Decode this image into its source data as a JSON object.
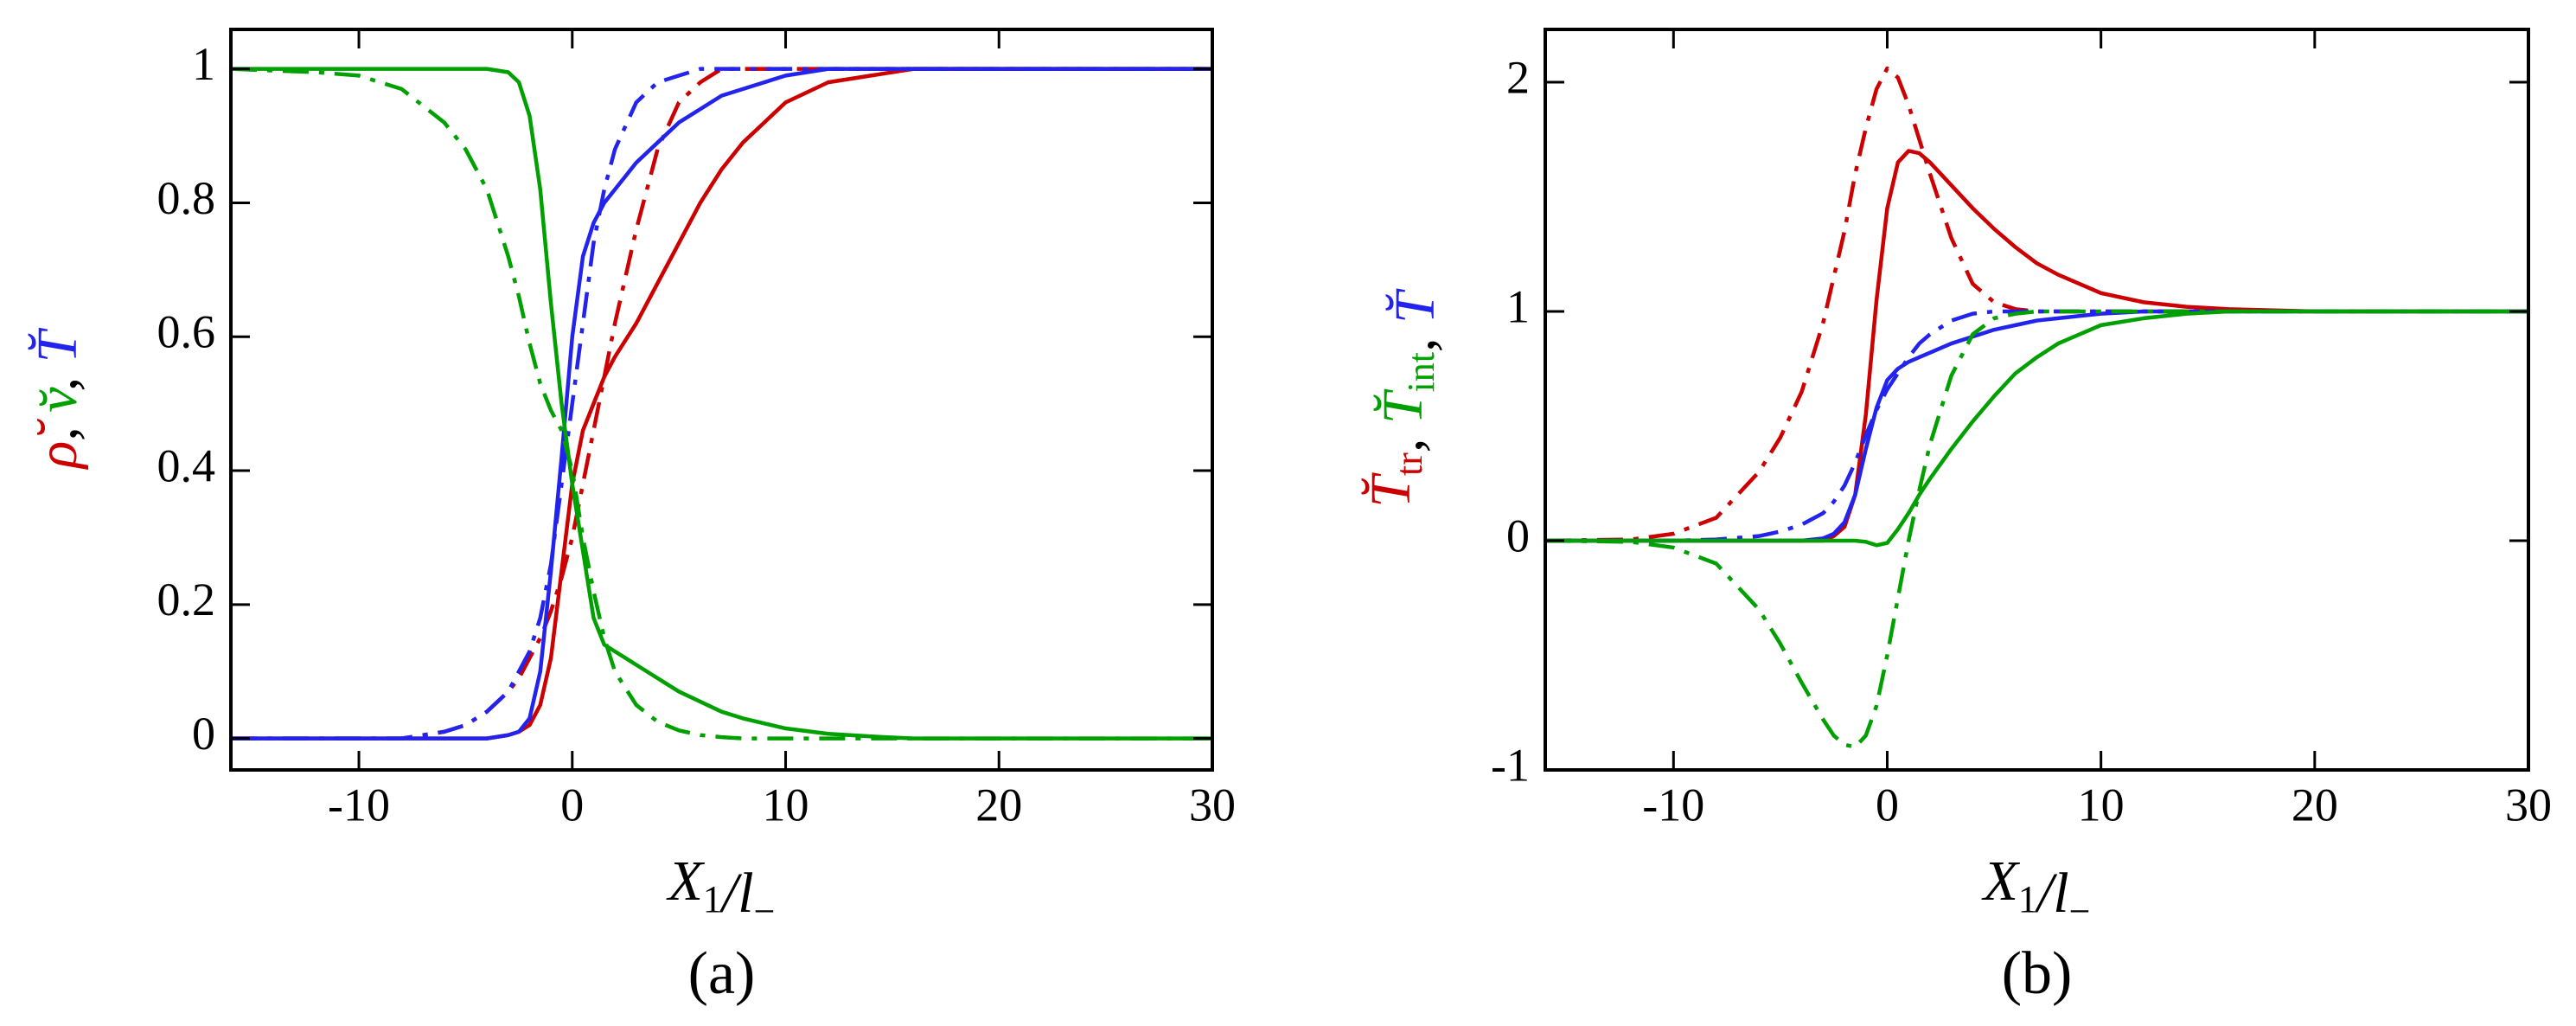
{
  "chart_data": [
    {
      "type": "line",
      "panel_label": "(a)",
      "xlabel": [
        {
          "text": "X",
          "sub": "1"
        },
        {
          "text": "/l",
          "sub": "−"
        }
      ],
      "ylabel": [
        {
          "text": "ρ̆",
          "color": "#cc0000"
        },
        {
          "text": ", ",
          "color": "#000000"
        },
        {
          "text": "v̆",
          "color": "#00a000"
        },
        {
          "text": ", ",
          "color": "#000000"
        },
        {
          "text": "T̆",
          "color": "#2323ee"
        }
      ],
      "xlim": [
        -16,
        30
      ],
      "ylim": [
        -0.047,
        1.059
      ],
      "xticks": [
        -10,
        0,
        10,
        20,
        30
      ],
      "yticks": [
        0,
        0.2,
        0.4,
        0.6,
        0.8,
        1
      ],
      "x": [
        -16,
        -12,
        -10,
        -8,
        -6,
        -5,
        -4,
        -3,
        -2.5,
        -2,
        -1.5,
        -1,
        -0.5,
        0,
        0.5,
        1,
        1.5,
        2,
        3,
        4,
        5,
        6,
        7,
        8,
        10,
        12,
        14,
        16,
        20,
        25,
        30
      ],
      "series": [
        {
          "color": "#cc0000",
          "dash": "solid",
          "values": [
            0,
            0,
            0,
            0,
            0,
            0,
            0,
            0.005,
            0.01,
            0.02,
            0.05,
            0.12,
            0.25,
            0.38,
            0.46,
            0.5,
            0.54,
            0.57,
            0.62,
            0.68,
            0.74,
            0.8,
            0.85,
            0.89,
            0.95,
            0.98,
            0.99,
            1,
            1,
            1,
            1
          ]
        },
        {
          "color": "#cc0000",
          "dash": "dashdot",
          "values": [
            0,
            0,
            0,
            0,
            0.01,
            0.02,
            0.04,
            0.07,
            0.09,
            0.12,
            0.15,
            0.19,
            0.24,
            0.3,
            0.38,
            0.46,
            0.54,
            0.62,
            0.76,
            0.88,
            0.95,
            0.98,
            1,
            1,
            1,
            1,
            1,
            1,
            1,
            1,
            1
          ]
        },
        {
          "color": "#2323ee",
          "dash": "solid",
          "values": [
            0,
            0,
            0,
            0,
            0,
            0,
            0,
            0.005,
            0.01,
            0.03,
            0.1,
            0.25,
            0.42,
            0.6,
            0.72,
            0.77,
            0.8,
            0.82,
            0.86,
            0.89,
            0.92,
            0.94,
            0.96,
            0.97,
            0.99,
            1,
            1,
            1,
            1,
            1,
            1
          ]
        },
        {
          "color": "#2323ee",
          "dash": "dashdot",
          "values": [
            0,
            0,
            0,
            0,
            0.01,
            0.02,
            0.04,
            0.07,
            0.1,
            0.13,
            0.18,
            0.26,
            0.38,
            0.5,
            0.62,
            0.74,
            0.82,
            0.88,
            0.95,
            0.98,
            0.99,
            1,
            1,
            1,
            1,
            1,
            1,
            1,
            1,
            1,
            1
          ]
        },
        {
          "color": "#00a000",
          "dash": "solid",
          "values": [
            1,
            1,
            1,
            1,
            1,
            1,
            1,
            0.995,
            0.98,
            0.93,
            0.82,
            0.65,
            0.5,
            0.38,
            0.28,
            0.18,
            0.14,
            0.13,
            0.11,
            0.09,
            0.07,
            0.055,
            0.04,
            0.03,
            0.015,
            0.007,
            0.003,
            0,
            0,
            0,
            0
          ]
        },
        {
          "color": "#00a000",
          "dash": "dashdot",
          "values": [
            1,
            0.995,
            0.99,
            0.97,
            0.92,
            0.88,
            0.82,
            0.72,
            0.66,
            0.59,
            0.53,
            0.49,
            0.46,
            0.4,
            0.3,
            0.22,
            0.15,
            0.1,
            0.05,
            0.025,
            0.012,
            0.005,
            0.002,
            0,
            0,
            0,
            0,
            0,
            0,
            0,
            0
          ]
        }
      ]
    },
    {
      "type": "line",
      "panel_label": "(b)",
      "xlabel": [
        {
          "text": "X",
          "sub": "1"
        },
        {
          "text": "/l",
          "sub": "−"
        }
      ],
      "ylabel": [
        {
          "text": "T̆",
          "sub": "tr",
          "color": "#cc0000"
        },
        {
          "text": ", ",
          "color": "#000000"
        },
        {
          "text": "T̆",
          "sub": "int",
          "color": "#00a000"
        },
        {
          "text": ", ",
          "color": "#000000"
        },
        {
          "text": "T̆",
          "color": "#2323ee"
        }
      ],
      "xlim": [
        -16,
        30
      ],
      "ylim": [
        -1,
        2.23
      ],
      "xticks": [
        -10,
        0,
        10,
        20,
        30
      ],
      "yticks": [
        -1,
        0,
        1,
        2
      ],
      "x": [
        -16,
        -12,
        -10,
        -8,
        -6,
        -5,
        -4,
        -3,
        -2.5,
        -2,
        -1.5,
        -1,
        -0.5,
        0,
        0.5,
        1,
        1.5,
        2,
        3,
        4,
        5,
        6,
        7,
        8,
        10,
        12,
        14,
        16,
        20,
        25,
        30
      ],
      "series": [
        {
          "color": "#cc0000",
          "dash": "solid",
          "values": [
            0,
            0,
            0,
            0,
            0,
            0,
            0,
            0,
            0.02,
            0.06,
            0.2,
            0.55,
            1.05,
            1.45,
            1.65,
            1.7,
            1.69,
            1.65,
            1.55,
            1.45,
            1.36,
            1.28,
            1.21,
            1.16,
            1.08,
            1.04,
            1.02,
            1.01,
            1,
            1,
            1
          ]
        },
        {
          "color": "#cc0000",
          "dash": "dashdot",
          "values": [
            0,
            0.005,
            0.03,
            0.1,
            0.3,
            0.45,
            0.65,
            0.95,
            1.15,
            1.35,
            1.6,
            1.8,
            1.97,
            2.06,
            2.02,
            1.9,
            1.75,
            1.6,
            1.32,
            1.12,
            1.04,
            1.01,
            1,
            1,
            1,
            1,
            1,
            1,
            1,
            1,
            1
          ]
        },
        {
          "color": "#2323ee",
          "dash": "solid",
          "values": [
            0,
            0,
            0,
            0,
            0,
            0,
            0,
            0.01,
            0.03,
            0.08,
            0.2,
            0.4,
            0.58,
            0.7,
            0.75,
            0.78,
            0.8,
            0.82,
            0.86,
            0.89,
            0.92,
            0.94,
            0.96,
            0.97,
            0.99,
            1,
            1,
            1,
            1,
            1,
            1
          ]
        },
        {
          "color": "#2323ee",
          "dash": "dashdot",
          "values": [
            0,
            0,
            0,
            0.005,
            0.02,
            0.04,
            0.07,
            0.12,
            0.17,
            0.24,
            0.34,
            0.46,
            0.57,
            0.66,
            0.73,
            0.8,
            0.86,
            0.9,
            0.96,
            0.99,
            1,
            1,
            1,
            1,
            1,
            1,
            1,
            1,
            1,
            1,
            1
          ]
        },
        {
          "color": "#00a000",
          "dash": "solid",
          "values": [
            0,
            0,
            0,
            0,
            0,
            0,
            0,
            0,
            0,
            0,
            0,
            -0.005,
            -0.02,
            -0.01,
            0.05,
            0.12,
            0.2,
            0.27,
            0.4,
            0.52,
            0.63,
            0.73,
            0.8,
            0.86,
            0.94,
            0.97,
            0.99,
            1,
            1,
            1,
            1
          ]
        },
        {
          "color": "#00a000",
          "dash": "dashdot",
          "values": [
            0,
            -0.005,
            -0.03,
            -0.1,
            -0.3,
            -0.45,
            -0.62,
            -0.78,
            -0.85,
            -0.89,
            -0.9,
            -0.85,
            -0.72,
            -0.5,
            -0.25,
            0,
            0.22,
            0.42,
            0.72,
            0.9,
            0.97,
            0.99,
            1,
            1,
            1,
            1,
            1,
            1,
            1,
            1,
            1
          ]
        }
      ]
    }
  ]
}
